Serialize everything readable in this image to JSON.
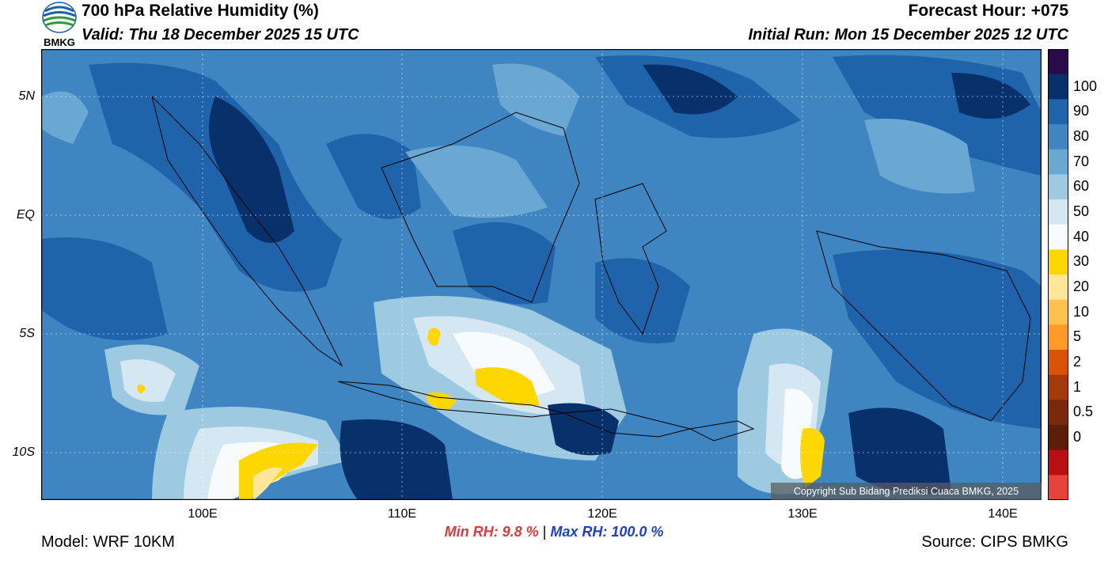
{
  "header": {
    "title": "700 hPa Relative Humidity (%)",
    "valid": "Valid: Thu 18 December 2025 15 UTC",
    "forecast_hour": "Forecast Hour: +075",
    "initial_run": "Initial Run: Mon 15 December 2025 12 UTC"
  },
  "logo": {
    "text": "BMKG"
  },
  "map": {
    "lat_labels": [
      "5N",
      "EQ",
      "5S",
      "10S"
    ],
    "lon_labels": [
      "100E",
      "110E",
      "120E",
      "130E",
      "140E"
    ],
    "copyright": "Copyright Sub Bidang Prediksi Cuaca BMKG, 2025"
  },
  "colorbar": {
    "labels": [
      "100",
      "90",
      "80",
      "70",
      "60",
      "50",
      "40",
      "30",
      "20",
      "10",
      "5",
      "2",
      "1",
      "0.5",
      "0"
    ],
    "colors": [
      "#2a0a4a",
      "#08306b",
      "#1f63ab",
      "#3f85c2",
      "#6aa7d3",
      "#9ecae1",
      "#d4e7f2",
      "#f7fbfe",
      "#ffd700",
      "#ffe699",
      "#ffc14d",
      "#ff9a26",
      "#d95208",
      "#a33a0a",
      "#7a2a0a",
      "#5c1e08",
      "#b80f14",
      "#e8413a"
    ],
    "accent_yellow": "#ffd700"
  },
  "stats": {
    "min_label": "Min RH:",
    "min_value": "9.8 %",
    "separator": "|",
    "max_label": "Max RH:",
    "max_value": "100.0 %",
    "min_color": "#e8363a",
    "max_color": "#1a3fd6"
  },
  "footer": {
    "model": "Model: WRF 10KM",
    "source": "Source: CIPS BMKG"
  }
}
